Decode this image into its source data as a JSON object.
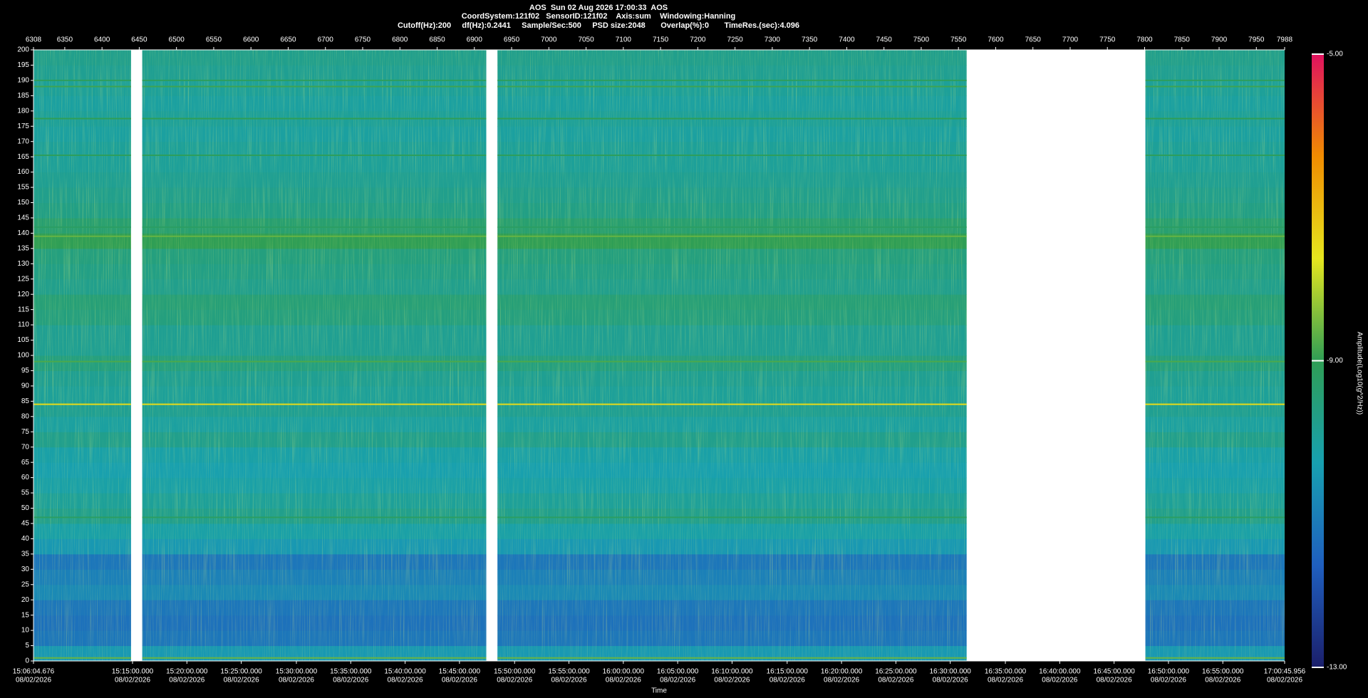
{
  "chart_data": {
    "type": "spectrogram",
    "title": "AOS  Sun 02 Aug 2026 17:00:33  AOS",
    "subtitles": [
      "CoordSystem:121f02   SensorID:121f02    Axis:sum    Windowing:Hanning",
      "Cutoff(Hz):200     df(Hz):0.2441     Sample/Sec:500     PSD size:2048       Overlap(%):0       TimeRes.(sec):4.096"
    ],
    "xlabel": "Time",
    "colorbar_label": "Amplitude(Log10(g^2/Hz))",
    "xlim": [
      6308,
      7988
    ],
    "xticks": [
      6308,
      6350,
      6400,
      6450,
      6500,
      6550,
      6600,
      6650,
      6700,
      6750,
      6800,
      6850,
      6900,
      6950,
      7000,
      7050,
      7100,
      7150,
      7200,
      7250,
      7300,
      7350,
      7400,
      7450,
      7500,
      7550,
      7600,
      7650,
      7700,
      7750,
      7800,
      7850,
      7900,
      7950,
      7988
    ],
    "time_ticks": [
      {
        "value": 6308,
        "label": "15:06:04.676",
        "date": "08/02/2026"
      },
      {
        "value": 6441,
        "label": "15:15:00.000",
        "date": "08/02/2026"
      },
      {
        "value": 6514,
        "label": "15:20:00.000",
        "date": "08/02/2026"
      },
      {
        "value": 6587,
        "label": "15:25:00.000",
        "date": "08/02/2026"
      },
      {
        "value": 6661,
        "label": "15:30:00.000",
        "date": "08/02/2026"
      },
      {
        "value": 6734,
        "label": "15:35:00.000",
        "date": "08/02/2026"
      },
      {
        "value": 6807,
        "label": "15:40:00.000",
        "date": "08/02/2026"
      },
      {
        "value": 6880,
        "label": "15:45:00.000",
        "date": "08/02/2026"
      },
      {
        "value": 6954,
        "label": "15:50:00.000",
        "date": "08/02/2026"
      },
      {
        "value": 7027,
        "label": "15:55:00.000",
        "date": "08/02/2026"
      },
      {
        "value": 7100,
        "label": "16:00:00.000",
        "date": "08/02/2026"
      },
      {
        "value": 7173,
        "label": "16:05:00.000",
        "date": "08/02/2026"
      },
      {
        "value": 7246,
        "label": "16:10:00.000",
        "date": "08/02/2026"
      },
      {
        "value": 7320,
        "label": "16:15:00.000",
        "date": "08/02/2026"
      },
      {
        "value": 7393,
        "label": "16:20:00.000",
        "date": "08/02/2026"
      },
      {
        "value": 7466,
        "label": "16:25:00.000",
        "date": "08/02/2026"
      },
      {
        "value": 7539,
        "label": "16:30:00.000",
        "date": "08/02/2026"
      },
      {
        "value": 7613,
        "label": "16:35:00.000",
        "date": "08/02/2026"
      },
      {
        "value": 7686,
        "label": "16:40:00.000",
        "date": "08/02/2026"
      },
      {
        "value": 7759,
        "label": "16:45:00.000",
        "date": "08/02/2026"
      },
      {
        "value": 7832,
        "label": "16:50:00.000",
        "date": "08/02/2026"
      },
      {
        "value": 7905,
        "label": "16:55:00.000",
        "date": "08/02/2026"
      },
      {
        "value": 7988,
        "label": "17:00:45.956",
        "date": "08/02/2026"
      }
    ],
    "ylim": [
      0,
      200
    ],
    "yticks": [
      0,
      5,
      10,
      15,
      20,
      25,
      30,
      35,
      40,
      45,
      50,
      55,
      60,
      65,
      70,
      75,
      80,
      85,
      90,
      95,
      100,
      105,
      110,
      115,
      120,
      125,
      130,
      135,
      140,
      145,
      150,
      155,
      160,
      165,
      170,
      175,
      180,
      185,
      190,
      195,
      200
    ],
    "segments": [
      [
        6308,
        6439
      ],
      [
        6454,
        6916
      ],
      [
        6931,
        7561
      ],
      [
        7801,
        7988
      ]
    ],
    "frequency_bins": [
      0,
      5,
      10,
      15,
      20,
      25,
      30,
      35,
      40,
      45,
      50,
      55,
      60,
      65,
      70,
      75,
      80,
      85,
      90,
      95,
      100,
      105,
      110,
      115,
      120,
      125,
      130,
      135,
      140,
      145,
      150,
      155,
      160,
      165,
      170,
      175,
      180,
      185,
      190,
      195,
      200
    ],
    "amplitude": [
      -10.5,
      -11.2,
      -11.3,
      -11.2,
      -10.8,
      -11.0,
      -11.2,
      -10.5,
      -10.2,
      -9.8,
      -10.0,
      -10.2,
      -10.3,
      -10.2,
      -9.8,
      -10.1,
      -9.9,
      -10.0,
      -9.9,
      -9.6,
      -9.9,
      -9.9,
      -9.6,
      -9.5,
      -9.8,
      -9.7,
      -9.6,
      -9.0,
      -9.4,
      -9.7,
      -9.8,
      -9.9,
      -10.0,
      -10.0,
      -10.1,
      -10.0,
      -10.1,
      -10.0,
      -9.9,
      -9.8
    ],
    "lines": [
      {
        "freq": 1,
        "amplitude": -8.6
      },
      {
        "freq": 47,
        "amplitude": -9.2
      },
      {
        "freq": 84,
        "amplitude": -7.5
      },
      {
        "freq": 98,
        "amplitude": -8.8
      },
      {
        "freq": 139,
        "amplitude": -8.6
      },
      {
        "freq": 142,
        "amplitude": -9.2
      },
      {
        "freq": 165.5,
        "amplitude": -9.1
      },
      {
        "freq": 177.5,
        "amplitude": -9.0
      },
      {
        "freq": 188,
        "amplitude": -8.9
      },
      {
        "freq": 190,
        "amplitude": -9.1
      }
    ],
    "clim": [
      -13,
      -5
    ],
    "cticks": [
      {
        "value": -5,
        "label": "-5.00"
      },
      {
        "value": -9,
        "label": "-9.00"
      },
      {
        "value": -13,
        "label": "-13.00"
      }
    ],
    "colormap": [
      "#1b1f6b",
      "#1f5fbf",
      "#17a0b0",
      "#2f9e55",
      "#e6e61e",
      "#f08c00",
      "#e0115f"
    ]
  }
}
